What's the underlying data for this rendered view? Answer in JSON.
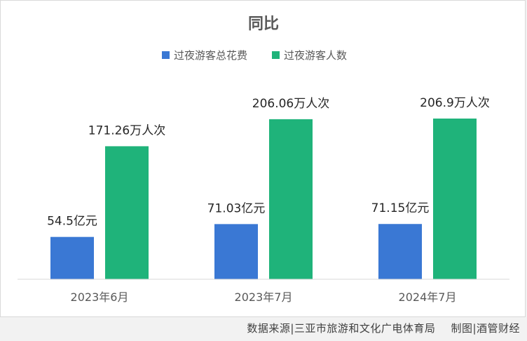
{
  "chart_data": {
    "type": "bar",
    "title": "同比",
    "categories": [
      "2023年6月",
      "2023年7月",
      "2024年7月"
    ],
    "series": [
      {
        "name": "过夜游客总花费",
        "color": "#3a78d4",
        "values": [
          54.5,
          71.03,
          71.15
        ],
        "labels": [
          "54.5亿元",
          "71.03亿元",
          "71.15亿元"
        ]
      },
      {
        "name": "过夜游客人数",
        "color": "#1fb37a",
        "values": [
          171.26,
          206.06,
          206.9
        ],
        "labels": [
          "171.26万人次",
          "206.06万人次",
          "206.9万人次"
        ]
      }
    ],
    "legend": "top-center",
    "grid": false
  },
  "footer": {
    "source": "数据来源|三亚市旅游和文化广电体育局",
    "credit": "制图|酒管财经"
  }
}
